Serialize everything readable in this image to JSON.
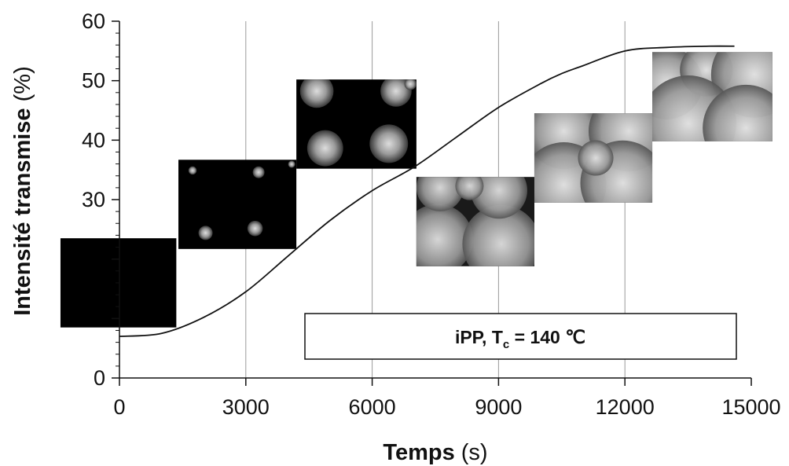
{
  "chart_data": {
    "type": "line",
    "xlabel_bold": "Temps",
    "xlabel_unit": " (s)",
    "ylabel_bold": "Intensité transmise",
    "ylabel_unit": " (%)",
    "xlim": [
      0,
      15000
    ],
    "ylim": [
      0,
      60
    ],
    "x_ticks": [
      "0",
      "3000",
      "6000",
      "9000",
      "12000",
      "15000"
    ],
    "y_ticks": [
      "0",
      "30",
      "40",
      "50",
      "60"
    ],
    "grid": "vertical",
    "series": [
      {
        "x": [
          0,
          1000,
          2000,
          3000,
          4000,
          5000,
          6000,
          7000,
          8000,
          9000,
          10000,
          10500,
          11000,
          12000,
          13000,
          14000,
          14600
        ],
        "y": [
          7,
          7.5,
          10.2,
          14.5,
          20.5,
          26.5,
          31.5,
          35.5,
          40.5,
          45.5,
          49.5,
          51.2,
          52.5,
          55,
          55.6,
          55.8,
          55.8
        ]
      }
    ],
    "annotation": {
      "prefix": "iPP, T",
      "subscript": "c",
      "suffix": " = 140 ℃"
    },
    "inset_images": [
      {
        "x_start": -1400,
        "x_end": 1350,
        "y_top": 23.5,
        "y_bottom": 8.5,
        "stage": 0
      },
      {
        "x_start": 1400,
        "x_end": 4200,
        "y_top": 36.7,
        "y_bottom": 21.7,
        "stage": 1
      },
      {
        "x_start": 4200,
        "x_end": 7050,
        "y_top": 50.2,
        "y_bottom": 35.2,
        "stage": 2
      },
      {
        "x_start": 7050,
        "x_end": 9850,
        "y_top": 33.8,
        "y_bottom": 18.8,
        "stage": 3
      },
      {
        "x_start": 9850,
        "x_end": 12650,
        "y_top": 44.5,
        "y_bottom": 29.5,
        "stage": 4
      },
      {
        "x_start": 12650,
        "x_end": 15500,
        "y_top": 54.8,
        "y_bottom": 39.8,
        "stage": 5
      }
    ]
  }
}
